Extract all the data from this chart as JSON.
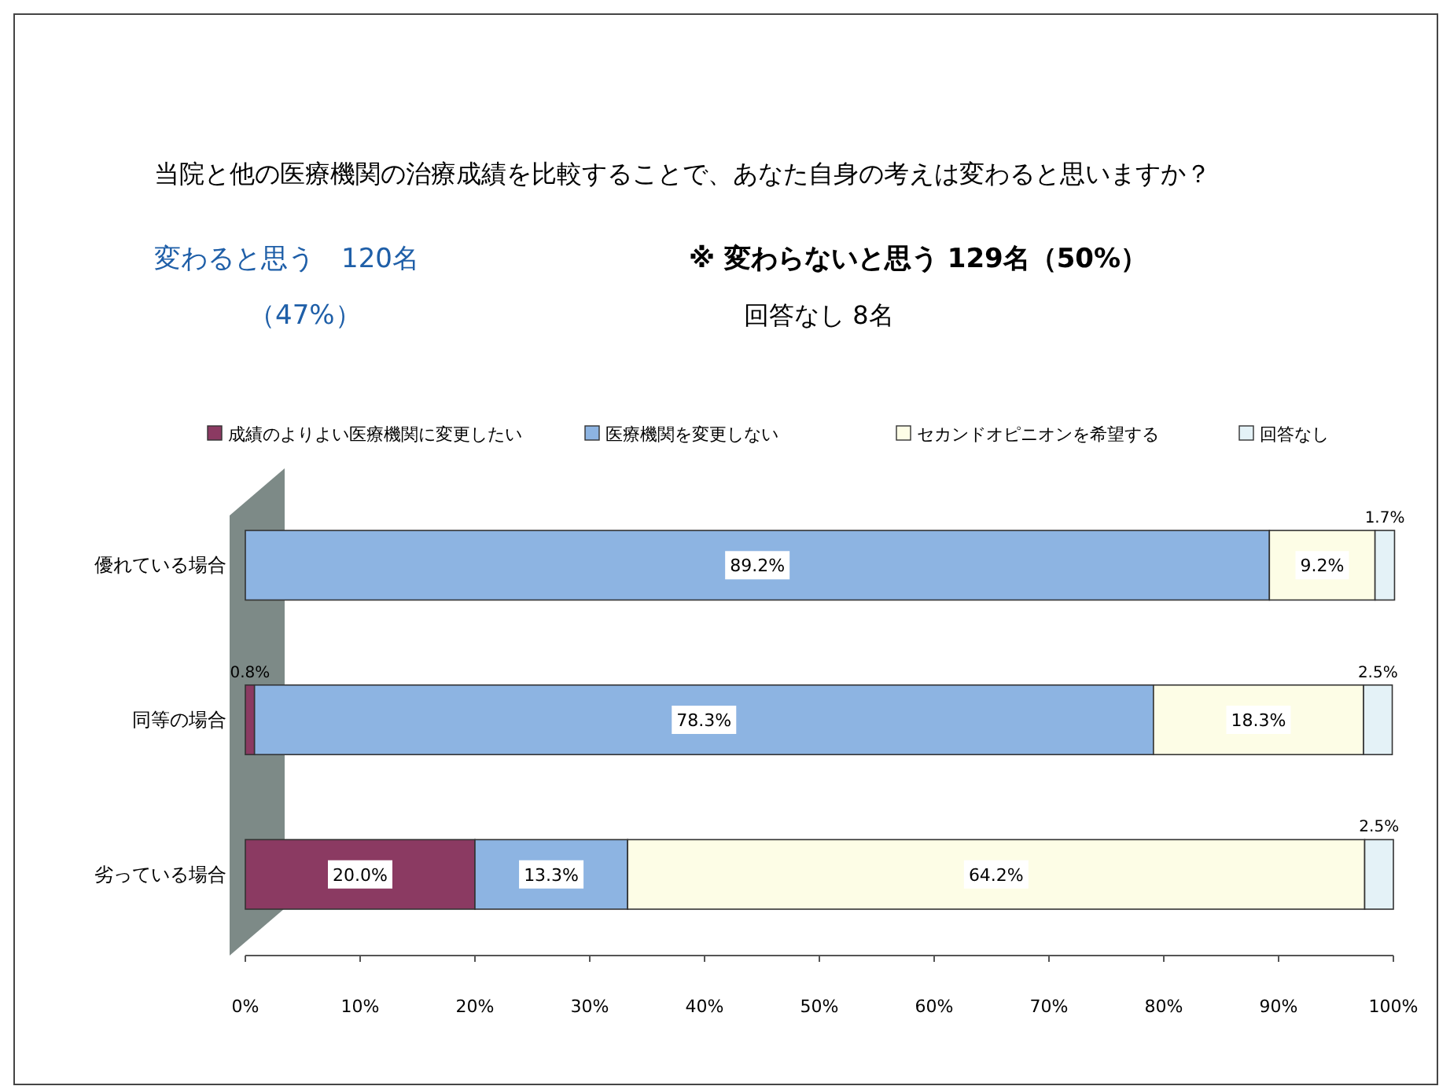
{
  "chart_data": {
    "type": "bar",
    "orientation": "horizontal",
    "stacked": true,
    "title": "当院と他の医療機関の治療成績を比較することで、あなた自身の考えは変わると思いますか？",
    "annotations": [
      "変わると思う　120名",
      "（47%）",
      "※ 変わらないと思う 129名（50%）",
      "回答なし 8名"
    ],
    "categories": [
      "優れている場合",
      "同等の場合",
      "劣っている場合"
    ],
    "series": [
      {
        "name": "成績のよりよい医療機関に変更したい",
        "color": "#8b3a62",
        "values": [
          0,
          0.8,
          20.0
        ],
        "value_labels": [
          null,
          "0.8%",
          "20.0%"
        ]
      },
      {
        "name": "医療機関を変更しない",
        "color": "#8db4e2",
        "values": [
          89.2,
          78.3,
          13.3
        ],
        "value_labels": [
          "89.2%",
          "78.3%",
          "13.3%"
        ]
      },
      {
        "name": "セカンドオピニオンを希望する",
        "color": "#fdfde6",
        "values": [
          9.2,
          18.3,
          64.2
        ],
        "value_labels": [
          "9.2%",
          "18.3%",
          "64.2%"
        ]
      },
      {
        "name": "回答なし",
        "color": "#e4f2f7",
        "values": [
          1.7,
          2.5,
          2.5
        ],
        "value_labels": [
          "1.7%",
          "2.5%",
          "2.5%"
        ]
      }
    ],
    "xlim": [
      0,
      100
    ],
    "xticks": [
      {
        "value": 0,
        "label": "0%"
      },
      {
        "value": 10,
        "label": "10%"
      },
      {
        "value": 20,
        "label": "20%"
      },
      {
        "value": 30,
        "label": "30%"
      },
      {
        "value": 40,
        "label": "40%"
      },
      {
        "value": 50,
        "label": "50%"
      },
      {
        "value": 60,
        "label": "60%"
      },
      {
        "value": 70,
        "label": "70%"
      },
      {
        "value": 80,
        "label": "80%"
      },
      {
        "value": 90,
        "label": "90%"
      },
      {
        "value": 100,
        "label": "100%"
      }
    ],
    "legend": "top",
    "grid": false
  }
}
